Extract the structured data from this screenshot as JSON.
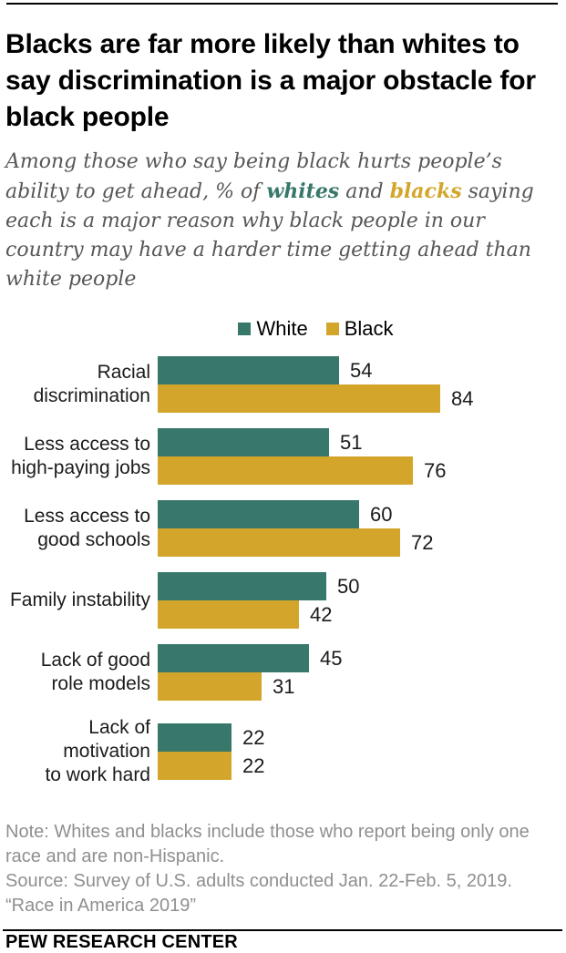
{
  "page": {
    "background": "#ffffff",
    "rule_color": "#000000"
  },
  "header": {
    "title": "Blacks are far more likely than whites to say discrimination is a major obstacle for black people"
  },
  "subtitle": {
    "text_before": "Among those who say being black hurts people’s ability to get ahead, % of ",
    "whites_word": "whites",
    "text_middle": " and ",
    "blacks_word": "blacks",
    "text_after": " saying each is a major reason why black people in our country may have a harder time getting ahead than white people",
    "color": "#575757",
    "whites_color": "#38786A",
    "blacks_color": "#D3A62B"
  },
  "legend": {
    "items": [
      {
        "label": "White",
        "color": "#38786A"
      },
      {
        "label": "Black",
        "color": "#D3A62B"
      }
    ]
  },
  "chart_data": {
    "type": "bar",
    "orientation": "horizontal",
    "title": "Blacks are far more likely than whites to say discrimination is a major obstacle for black people",
    "categories": [
      "Racial\ndiscrimination",
      "Less access to\nhigh-paying jobs",
      "Less access to\ngood schools",
      "Family instability",
      "Lack of good\nrole models",
      "Lack of motivation\nto work hard"
    ],
    "series": [
      {
        "name": "White",
        "color": "#38786A",
        "values": [
          54,
          51,
          60,
          50,
          45,
          22
        ]
      },
      {
        "name": "Black",
        "color": "#D3A62B",
        "values": [
          84,
          76,
          72,
          42,
          31,
          22
        ]
      }
    ],
    "xlim": [
      0,
      84
    ],
    "grid": false,
    "legend_position": "top",
    "value_labels": "end"
  },
  "footer": {
    "notes": [
      "Note: Whites and blacks include those who report being only one race and are non-Hispanic.",
      "Source: Survey of U.S. adults conducted Jan. 22-Feb. 5, 2019.",
      "“Race in America 2019”"
    ],
    "brand": "PEW RESEARCH CENTER"
  }
}
